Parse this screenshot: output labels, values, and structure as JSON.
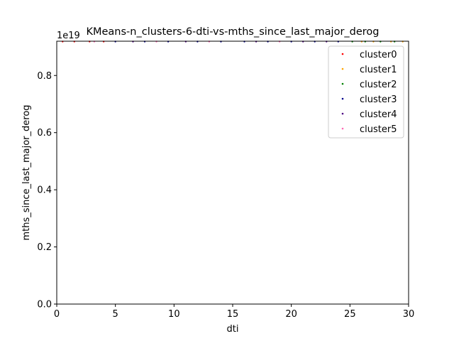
{
  "chart_data": {
    "type": "scatter",
    "title": "KMeans-n_clusters-6-dti-vs-mths_since_last_major_derog",
    "xlabel": "dti",
    "ylabel": "mths_since_last_major_derog",
    "y_offset_text": "1e19",
    "xlim": [
      0,
      30
    ],
    "ylim": [
      0,
      0.92
    ],
    "x_ticks": [
      "0",
      "5",
      "10",
      "15",
      "20",
      "25",
      "30"
    ],
    "x_tick_values": [
      0,
      5,
      10,
      15,
      20,
      25,
      30
    ],
    "y_ticks": [
      "0.0",
      "0.2",
      "0.4",
      "0.6",
      "0.8"
    ],
    "y_tick_values": [
      0.0,
      0.2,
      0.4,
      0.6,
      0.8
    ],
    "grid": false,
    "legend_position": "upper right",
    "series": [
      {
        "name": "cluster0",
        "color": "#ff0000",
        "points": [
          [
            0.5,
            0.9223
          ],
          [
            1.5,
            0.9223
          ],
          [
            2.8,
            0.9223
          ],
          [
            4.0,
            0.9223
          ]
        ]
      },
      {
        "name": "cluster1",
        "color": "#ffa500",
        "points": [
          [
            26.0,
            0.9223
          ],
          [
            27.0,
            0.9223
          ],
          [
            28.5,
            0.9223
          ],
          [
            29.5,
            0.9223
          ]
        ]
      },
      {
        "name": "cluster2",
        "color": "#008000",
        "points": [
          [
            25.2,
            0.9223
          ],
          [
            26.3,
            0.9223
          ],
          [
            27.6,
            0.9223
          ],
          [
            28.8,
            0.9223
          ]
        ]
      },
      {
        "name": "cluster3",
        "color": "#00008b",
        "points": [
          [
            5.0,
            0.9223
          ],
          [
            7.5,
            0.9223
          ],
          [
            9.5,
            0.9223
          ],
          [
            12.0,
            0.9223
          ],
          [
            14.0,
            0.9223
          ],
          [
            16.0,
            0.9223
          ],
          [
            18.0,
            0.9223
          ],
          [
            20.0,
            0.9223
          ],
          [
            22.0,
            0.9223
          ],
          [
            24.0,
            0.9223
          ]
        ]
      },
      {
        "name": "cluster4",
        "color": "#4b0082",
        "points": [
          [
            6.5,
            0.9223
          ],
          [
            11.0,
            0.9223
          ],
          [
            17.0,
            0.9223
          ],
          [
            21.0,
            0.9223
          ],
          [
            23.0,
            0.9223
          ]
        ]
      },
      {
        "name": "cluster5",
        "color": "#ff69b4",
        "points": [
          [
            3.2,
            0.9223
          ],
          [
            8.5,
            0.9223
          ],
          [
            13.0,
            0.9223
          ],
          [
            19.0,
            0.9223
          ]
        ]
      }
    ]
  }
}
